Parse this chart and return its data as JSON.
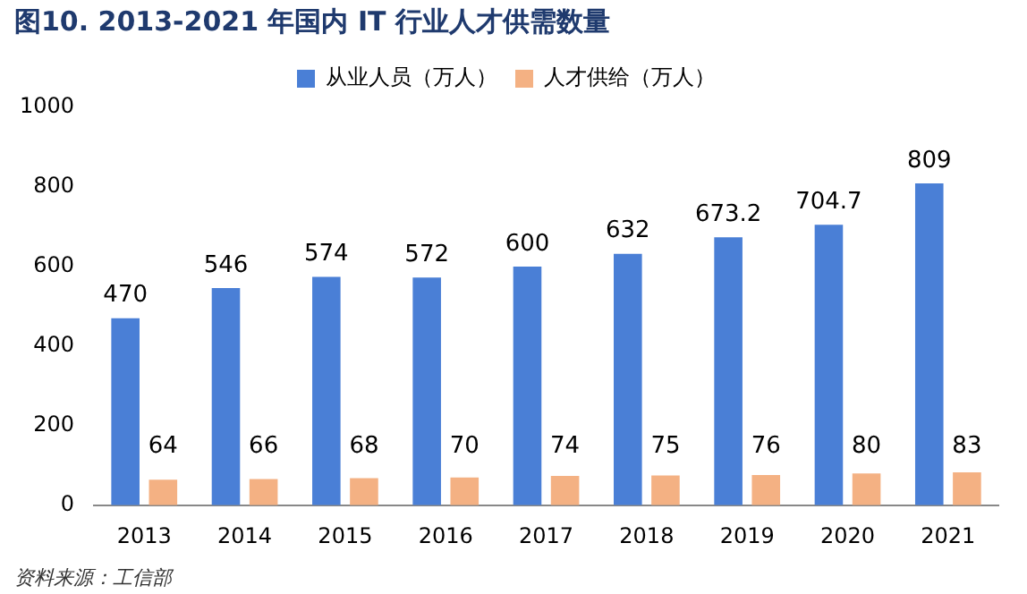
{
  "chart_data": {
    "type": "bar",
    "title": "图10. 2013-2021 年国内 IT 行业人才供需数量",
    "categories": [
      "2013",
      "2014",
      "2015",
      "2016",
      "2017",
      "2018",
      "2019",
      "2020",
      "2021"
    ],
    "series": [
      {
        "name": "从业人员（万人）",
        "color": "#4a7fd6",
        "values": [
          470,
          546,
          574,
          572,
          600,
          632,
          673.2,
          704.7,
          809
        ]
      },
      {
        "name": "人才供给（万人）",
        "color": "#f4b183",
        "values": [
          64,
          66,
          68,
          70,
          74,
          75,
          76,
          80,
          83
        ]
      }
    ],
    "ylim": [
      0,
      1000
    ],
    "yticks": [
      0,
      200,
      400,
      600,
      800,
      1000
    ],
    "grid": false,
    "legend": "top",
    "data_labels": true,
    "annotations": [
      "资料来源：工信部"
    ]
  }
}
